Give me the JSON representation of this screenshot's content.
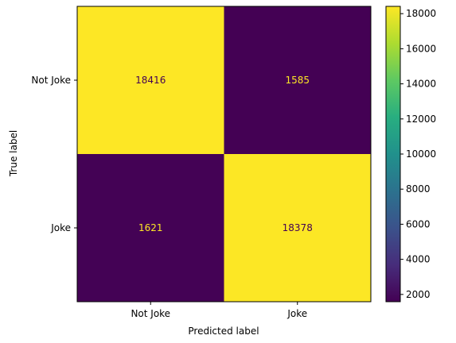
{
  "chart_data": {
    "type": "heatmap",
    "title": "",
    "xlabel": "Predicted label",
    "ylabel": "True label",
    "x_categories": [
      "Not Joke",
      "Joke"
    ],
    "y_categories": [
      "Not Joke",
      "Joke"
    ],
    "values": [
      [
        18416,
        1585
      ],
      [
        1621,
        18378
      ]
    ],
    "colormap": "viridis",
    "value_range": [
      1585,
      18416
    ],
    "colorbar": {
      "ticks": [
        "2000",
        "4000",
        "6000",
        "8000",
        "10000",
        "12000",
        "14000",
        "16000",
        "18000"
      ],
      "tick_values": [
        2000,
        4000,
        6000,
        8000,
        10000,
        12000,
        14000,
        16000,
        18000
      ]
    },
    "text_colors": {
      "on_dark": "#fde725",
      "on_light": "#440154"
    },
    "grid": false
  }
}
